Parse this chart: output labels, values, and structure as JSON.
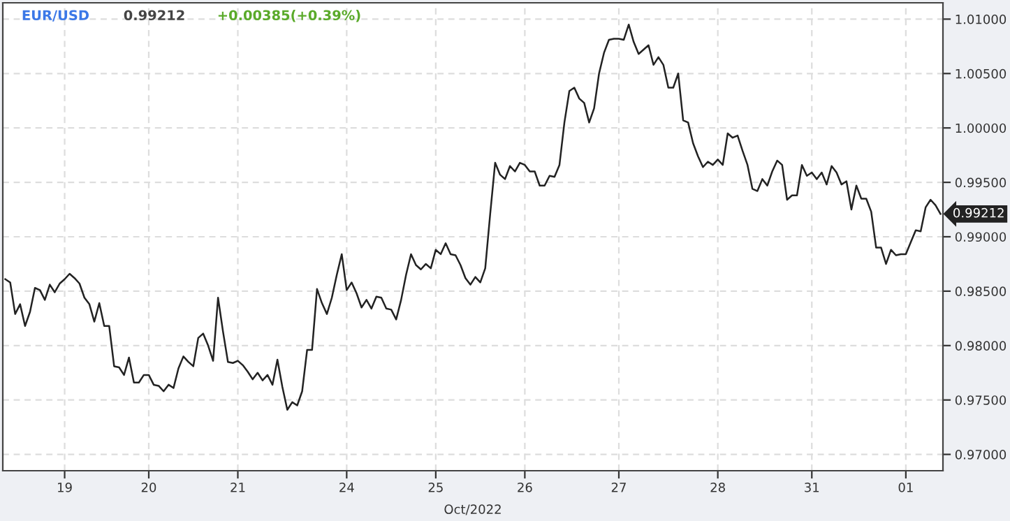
{
  "chart_data": {
    "type": "line",
    "title": "EUR/USD",
    "xlabel": "Oct/2022",
    "annotations": [
      "0.99212",
      "+0.00385(+0.39%)",
      "0.99212"
    ],
    "categories": [
      null,
      null,
      null,
      null,
      null,
      null,
      null,
      null,
      null,
      null,
      null,
      null,
      "19",
      null,
      null,
      null,
      null,
      null,
      null,
      null,
      null,
      null,
      null,
      null,
      null,
      null,
      null,
      null,
      null,
      "20",
      null,
      null,
      null,
      null,
      null,
      null,
      null,
      null,
      null,
      null,
      null,
      null,
      null,
      null,
      null,
      null,
      null,
      "21",
      null,
      null,
      null,
      null,
      null,
      null,
      null,
      null,
      null,
      null,
      null,
      null,
      null,
      null,
      null,
      null,
      null,
      null,
      null,
      null,
      null,
      "24",
      null,
      null,
      null,
      null,
      null,
      null,
      null,
      null,
      null,
      null,
      null,
      null,
      null,
      null,
      null,
      null,
      null,
      "25",
      null,
      null,
      null,
      null,
      null,
      null,
      null,
      null,
      null,
      null,
      null,
      null,
      null,
      null,
      null,
      null,
      null,
      "26",
      null,
      null,
      null,
      null,
      null,
      null,
      null,
      null,
      null,
      null,
      null,
      null,
      null,
      null,
      null,
      null,
      null,
      null,
      "27",
      null,
      null,
      null,
      null,
      null,
      null,
      null,
      null,
      null,
      null,
      null,
      null,
      null,
      null,
      null,
      null,
      null,
      null,
      null,
      "28",
      null,
      null,
      null,
      null,
      null,
      null,
      null,
      null,
      null,
      null,
      null,
      null,
      null,
      null,
      null,
      null,
      null,
      null,
      "31",
      null,
      null,
      null,
      null,
      null,
      null,
      null,
      null,
      null,
      null,
      null,
      null,
      null,
      null,
      null,
      null,
      null,
      null,
      "01",
      null,
      null,
      null,
      null,
      null,
      null,
      null
    ],
    "ylim": [
      0.9685,
      1.0115
    ],
    "yticks": [
      {
        "value": 0.97,
        "label": "0.97000"
      },
      {
        "value": 0.975,
        "label": "0.97500"
      },
      {
        "value": 0.98,
        "label": "0.98000"
      },
      {
        "value": 0.985,
        "label": "0.98500"
      },
      {
        "value": 0.99,
        "label": "0.99000"
      },
      {
        "value": 0.995,
        "label": "0.99500"
      },
      {
        "value": 1.0,
        "label": "1.00000"
      },
      {
        "value": 1.005,
        "label": "1.00500"
      },
      {
        "value": 1.01,
        "label": "1.01000"
      }
    ],
    "grid": true,
    "marker": "none",
    "line_style": "solid",
    "series": [
      {
        "color": "#222222",
        "values": [
          0.9861,
          0.9858,
          0.9829,
          0.9838,
          0.9818,
          0.9831,
          0.9853,
          0.9851,
          0.9842,
          0.9856,
          0.9849,
          0.9857,
          0.9861,
          0.9866,
          0.9862,
          0.9857,
          0.9844,
          0.9838,
          0.9822,
          0.9839,
          0.9818,
          0.9818,
          0.9781,
          0.978,
          0.9773,
          0.9789,
          0.9766,
          0.9766,
          0.9773,
          0.9773,
          0.9764,
          0.9763,
          0.9758,
          0.9764,
          0.9761,
          0.9779,
          0.979,
          0.9785,
          0.9781,
          0.9807,
          0.9811,
          0.98,
          0.9786,
          0.9844,
          0.9813,
          0.9785,
          0.9784,
          0.9786,
          0.9782,
          0.9776,
          0.9769,
          0.9775,
          0.9768,
          0.9773,
          0.9764,
          0.9787,
          0.9762,
          0.9741,
          0.9748,
          0.9745,
          0.9758,
          0.9796,
          0.9796,
          0.9852,
          0.9839,
          0.9829,
          0.9844,
          0.9865,
          0.9884,
          0.9851,
          0.9858,
          0.9848,
          0.9835,
          0.9842,
          0.9834,
          0.9845,
          0.9844,
          0.9834,
          0.9833,
          0.9824,
          0.9842,
          0.9865,
          0.9884,
          0.9874,
          0.987,
          0.9875,
          0.9871,
          0.9888,
          0.9884,
          0.9894,
          0.9884,
          0.9883,
          0.9874,
          0.9862,
          0.9856,
          0.9863,
          0.9858,
          0.9871,
          0.9921,
          0.9968,
          0.9957,
          0.9953,
          0.9965,
          0.996,
          0.9968,
          0.9966,
          0.996,
          0.996,
          0.9947,
          0.9947,
          0.9956,
          0.9955,
          0.9966,
          1.0005,
          1.0034,
          1.0037,
          1.0027,
          1.0023,
          1.0005,
          1.0018,
          1.005,
          1.0069,
          1.0081,
          1.0082,
          1.0082,
          1.0081,
          1.0095,
          1.0079,
          1.0068,
          1.0072,
          1.0076,
          1.0058,
          1.0065,
          1.0058,
          1.0037,
          1.0037,
          1.005,
          1.0007,
          1.0005,
          0.9986,
          0.9974,
          0.9964,
          0.9969,
          0.9966,
          0.9971,
          0.9966,
          0.9995,
          0.9991,
          0.9993,
          0.9979,
          0.9966,
          0.9944,
          0.9942,
          0.9953,
          0.9947,
          0.996,
          0.997,
          0.9966,
          0.9934,
          0.9938,
          0.9938,
          0.9966,
          0.9956,
          0.9959,
          0.9953,
          0.9959,
          0.9948,
          0.9965,
          0.9959,
          0.9948,
          0.9951,
          0.9925,
          0.9947,
          0.9935,
          0.9935,
          0.9923,
          0.989,
          0.989,
          0.9875,
          0.9888,
          0.9883,
          0.9884,
          0.9884,
          0.9895,
          0.9906,
          0.9905,
          0.9927,
          0.9934,
          0.9929,
          0.9921
        ]
      }
    ]
  }
}
